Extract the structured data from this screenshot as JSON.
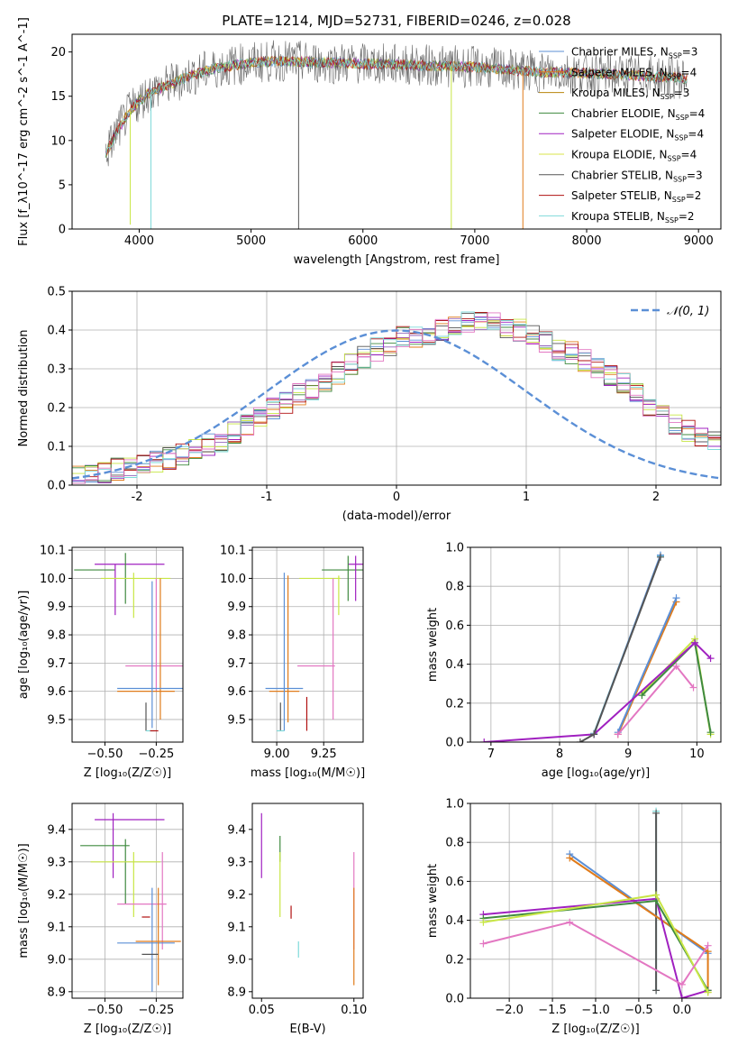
{
  "figure": {
    "title": "PLATE=1214, MJD=52731, FIBERID=0246, z=0.028"
  },
  "colors": {
    "series": [
      "#5b8fd6",
      "#9467bd",
      "#e07b1a",
      "#3f8a3f",
      "#a020c0",
      "#c8e645",
      "#555555",
      "#b01010",
      "#7fdada"
    ]
  },
  "chart_data": [
    {
      "type": "line",
      "id": "spectrum",
      "xlabel": "wavelength [Angstrom, rest frame]",
      "ylabel": "Flux [f_λ10^-17 erg cm^-2 s^-1 A^-1]",
      "xlim": [
        3400,
        9200
      ],
      "ylim": [
        0,
        22
      ],
      "xticks": [
        4000,
        5000,
        6000,
        7000,
        8000,
        9000
      ],
      "yticks": [
        0,
        5,
        10,
        15,
        20
      ],
      "grid": false,
      "legend_placement": "upper-right",
      "legend": [
        {
          "text": "Chabrier MILES, N",
          "sub": "SSP",
          "tail": "=3"
        },
        {
          "text": "Salpeter MILES, N",
          "sub": "SSP",
          "tail": "=4"
        },
        {
          "text": "Kroupa MILES, N",
          "sub": "SSP",
          "tail": "=3"
        },
        {
          "text": "Chabrier ELODIE, N",
          "sub": "SSP",
          "tail": "=4"
        },
        {
          "text": "Salpeter ELODIE, N",
          "sub": "SSP",
          "tail": "=4"
        },
        {
          "text": "Kroupa ELODIE, N",
          "sub": "SSP",
          "tail": "=4"
        },
        {
          "text": "Chabrier STELIB, N",
          "sub": "SSP",
          "tail": "=3"
        },
        {
          "text": "Salpeter STELIB, N",
          "sub": "SSP",
          "tail": "=2"
        },
        {
          "text": "Kroupa STELIB, N",
          "sub": "SSP",
          "tail": "=2"
        }
      ],
      "legend_colors": [
        "#5b8fd6",
        "#e07b1a",
        "#b8860b",
        "#3f8a3f",
        "#a020c0",
        "#d8e64a",
        "#555555",
        "#b01010",
        "#7fdada"
      ],
      "continuum": {
        "x": [
          3700,
          3800,
          3900,
          4000,
          4100,
          4300,
          4500,
          4700,
          5000,
          5300,
          5600,
          6000,
          6500,
          7000,
          7500,
          8000,
          8500,
          8900
        ],
        "y": [
          8.5,
          11,
          13,
          14.5,
          15.5,
          16.5,
          17.5,
          18.2,
          18.8,
          19.0,
          18.8,
          18.7,
          18.5,
          18.3,
          17.8,
          17.6,
          17.3,
          17.0
        ]
      },
      "dropouts": [
        {
          "x": 3920,
          "y_min": 0.5,
          "color": "#c8e645"
        },
        {
          "x": 4105,
          "y_min": 0.0,
          "color": "#7fdada"
        },
        {
          "x": 5425,
          "y_min": 0.0,
          "color": "#555555"
        },
        {
          "x": 6790,
          "y_min": 0.0,
          "color": "#c8e645"
        },
        {
          "x": 7430,
          "y_min": 0.0,
          "color": "#e07b1a"
        }
      ]
    },
    {
      "type": "line",
      "id": "residuals",
      "xlabel": "(data-model)/error",
      "ylabel": "Normed distribution",
      "xlim": [
        -2.5,
        2.5
      ],
      "ylim": [
        0,
        0.5
      ],
      "xticks": [
        -2,
        -1,
        0,
        1,
        2
      ],
      "yticks": [
        0.0,
        0.1,
        0.2,
        0.3,
        0.4,
        0.5
      ],
      "grid": true,
      "legend_placement": "upper-right",
      "legend": [
        {
          "text": "𝒩(0, 1)",
          "style": "dashed"
        }
      ],
      "gaussian": {
        "mu": 0,
        "sigma": 1,
        "color": "#5b8fd6"
      },
      "step_hist": {
        "bin_width": 0.1,
        "x_start": -2.5,
        "base": [
          0.02,
          0.025,
          0.03,
          0.04,
          0.045,
          0.055,
          0.06,
          0.07,
          0.08,
          0.09,
          0.105,
          0.115,
          0.135,
          0.155,
          0.18,
          0.2,
          0.215,
          0.235,
          0.25,
          0.27,
          0.29,
          0.31,
          0.33,
          0.35,
          0.36,
          0.38,
          0.385,
          0.39,
          0.4,
          0.41,
          0.42,
          0.425,
          0.42,
          0.41,
          0.4,
          0.39,
          0.37,
          0.35,
          0.34,
          0.32,
          0.3,
          0.28,
          0.26,
          0.235,
          0.2,
          0.18,
          0.16,
          0.14,
          0.125,
          0.11,
          0.09,
          0.08,
          0.07,
          0.06,
          0.05,
          0.045,
          0.04,
          0.035,
          0.03,
          0.025
        ]
      }
    },
    {
      "type": "scatter",
      "id": "age-vs-Z",
      "xlabel": "Z [log₁₀(Z/Z☉)]",
      "ylabel": "age  [log₁₀(age/yr)]",
      "xlim": [
        -0.66,
        -0.12
      ],
      "ylim": [
        9.42,
        10.11
      ],
      "xticks": [
        -0.5,
        -0.25
      ],
      "xticklabels": [
        "−0.50",
        "−0.25"
      ],
      "yticks": [
        9.5,
        9.6,
        9.7,
        9.8,
        9.9,
        10.0,
        10.1
      ],
      "grid": true,
      "errorbars": [
        {
          "x": -0.55,
          "y": 10.03,
          "xerr": 0.1,
          "yerr": 0.0,
          "color": "#3f8a3f"
        },
        {
          "x": -0.38,
          "y": 10.05,
          "xerr": 0.17,
          "yerr": 0.0,
          "color": "#a020c0"
        },
        {
          "x": -0.45,
          "y": 9.96,
          "xerr": 0.0,
          "yerr": 0.09,
          "color": "#a020c0"
        },
        {
          "x": -0.4,
          "y": 10.0,
          "xerr": 0.0,
          "yerr": 0.09,
          "color": "#3f8a3f"
        },
        {
          "x": -0.35,
          "y": 10.0,
          "xerr": 0.17,
          "yerr": 0.0,
          "color": "#c8e645"
        },
        {
          "x": -0.36,
          "y": 9.94,
          "xerr": 0.0,
          "yerr": 0.08,
          "color": "#c8e645"
        },
        {
          "x": -0.25,
          "y": 9.69,
          "xerr": 0.15,
          "yerr": 0.0,
          "color": "#e377c2"
        },
        {
          "x": -0.25,
          "y": 9.8,
          "xerr": 0.0,
          "yerr": 0.2,
          "color": "#e377c2"
        },
        {
          "x": -0.23,
          "y": 9.75,
          "xerr": 0.0,
          "yerr": 0.25,
          "color": "#e07b1a"
        },
        {
          "x": -0.27,
          "y": 9.61,
          "xerr": 0.17,
          "yerr": 0.0,
          "color": "#5b8fd6"
        },
        {
          "x": -0.3,
          "y": 9.6,
          "xerr": 0.14,
          "yerr": 0.0,
          "color": "#e07b1a"
        },
        {
          "x": -0.27,
          "y": 9.73,
          "xerr": 0.0,
          "yerr": 0.26,
          "color": "#5b8fd6"
        },
        {
          "x": -0.3,
          "y": 9.51,
          "xerr": 0.0,
          "yerr": 0.05,
          "color": "#555555"
        },
        {
          "x": -0.28,
          "y": 9.46,
          "xerr": 0.02,
          "yerr": 0.0,
          "color": "#7fdada"
        },
        {
          "x": -0.26,
          "y": 9.46,
          "xerr": 0.02,
          "yerr": 0.0,
          "color": "#b01010"
        }
      ]
    },
    {
      "type": "scatter",
      "id": "age-vs-mass",
      "xlabel": "mass [log₁₀(M/M☉)]",
      "ylabel": "",
      "xlim": [
        8.87,
        9.46
      ],
      "ylim": [
        9.42,
        10.11
      ],
      "xticks": [
        9.0,
        9.25
      ],
      "xticklabels": [
        "9.00",
        "9.25"
      ],
      "yticks": [
        9.5,
        9.6,
        9.7,
        9.8,
        9.9,
        10.0,
        10.1
      ],
      "grid": true,
      "errorbars": [
        {
          "x": 9.35,
          "y": 10.03,
          "xerr": 0.11,
          "yerr": 0.0,
          "color": "#3f8a3f"
        },
        {
          "x": 9.42,
          "y": 10.05,
          "xerr": 0.04,
          "yerr": 0.0,
          "color": "#a020c0"
        },
        {
          "x": 9.42,
          "y": 10.0,
          "xerr": 0.0,
          "yerr": 0.08,
          "color": "#a020c0"
        },
        {
          "x": 9.38,
          "y": 10.0,
          "xerr": 0.0,
          "yerr": 0.08,
          "color": "#3f8a3f"
        },
        {
          "x": 9.23,
          "y": 10.0,
          "xerr": 0.11,
          "yerr": 0.0,
          "color": "#c8e645"
        },
        {
          "x": 9.33,
          "y": 9.94,
          "xerr": 0.0,
          "yerr": 0.07,
          "color": "#c8e645"
        },
        {
          "x": 9.21,
          "y": 9.69,
          "xerr": 0.1,
          "yerr": 0.0,
          "color": "#e377c2"
        },
        {
          "x": 9.3,
          "y": 9.75,
          "xerr": 0.0,
          "yerr": 0.25,
          "color": "#e377c2"
        },
        {
          "x": 9.06,
          "y": 9.75,
          "xerr": 0.0,
          "yerr": 0.26,
          "color": "#e07b1a"
        },
        {
          "x": 9.04,
          "y": 9.61,
          "xerr": 0.1,
          "yerr": 0.0,
          "color": "#5b8fd6"
        },
        {
          "x": 9.04,
          "y": 9.6,
          "xerr": 0.08,
          "yerr": 0.0,
          "color": "#e07b1a"
        },
        {
          "x": 9.04,
          "y": 9.74,
          "xerr": 0.0,
          "yerr": 0.28,
          "color": "#5b8fd6"
        },
        {
          "x": 9.16,
          "y": 9.52,
          "xerr": 0.0,
          "yerr": 0.06,
          "color": "#b01010"
        },
        {
          "x": 9.02,
          "y": 9.51,
          "xerr": 0.0,
          "yerr": 0.05,
          "color": "#555555"
        },
        {
          "x": 9.02,
          "y": 9.46,
          "xerr": 0.02,
          "yerr": 0.0,
          "color": "#7fdada"
        }
      ]
    },
    {
      "type": "line",
      "id": "mass-weight-vs-age",
      "xlabel": "age  [log₁₀(age/yr)]",
      "ylabel": "mass weight",
      "xlim": [
        6.7,
        10.35
      ],
      "ylim": [
        0,
        1.0
      ],
      "xticks": [
        7,
        8,
        9,
        10
      ],
      "yticks": [
        0.0,
        0.2,
        0.4,
        0.6,
        0.8,
        1.0
      ],
      "grid": true,
      "series": [
        {
          "color": "#7fdada",
          "x": [
            8.5,
            9.47
          ],
          "y": [
            0.045,
            0.955
          ]
        },
        {
          "color": "#5b8fd6",
          "x": [
            8.5,
            9.47
          ],
          "y": [
            0.04,
            0.96
          ]
        },
        {
          "color": "#e07b1a",
          "x": [
            8.85,
            9.7
          ],
          "y": [
            0.04,
            0.72
          ]
        },
        {
          "color": "#5b8fd6",
          "x": [
            8.85,
            9.7
          ],
          "y": [
            0.05,
            0.74
          ]
        },
        {
          "color": "#c8e645",
          "x": [
            9.2,
            9.97,
            10.2
          ],
          "y": [
            0.25,
            0.53,
            0.04
          ]
        },
        {
          "color": "#3f8a3f",
          "x": [
            9.2,
            9.97,
            10.2
          ],
          "y": [
            0.24,
            0.51,
            0.05
          ]
        },
        {
          "color": "#a020c0",
          "x": [
            6.9,
            8.5,
            9.97,
            10.2
          ],
          "y": [
            0.0,
            0.04,
            0.51,
            0.43
          ]
        },
        {
          "color": "#555555",
          "x": [
            8.3,
            8.5,
            9.47
          ],
          "y": [
            0.0,
            0.04,
            0.95
          ]
        },
        {
          "color": "#e377c2",
          "x": [
            8.85,
            9.7,
            9.95
          ],
          "y": [
            0.04,
            0.39,
            0.28
          ]
        }
      ]
    },
    {
      "type": "scatter",
      "id": "mass-vs-Z",
      "xlabel": "Z [log₁₀(Z/Z☉)]",
      "ylabel": "mass [log₁₀(M/M☉)]",
      "xlim": [
        -0.66,
        -0.12
      ],
      "ylim": [
        8.88,
        9.48
      ],
      "xticks": [
        -0.5,
        -0.25
      ],
      "xticklabels": [
        "−0.50",
        "−0.25"
      ],
      "yticks": [
        8.9,
        9.0,
        9.1,
        9.2,
        9.3,
        9.4
      ],
      "grid": true,
      "errorbars": [
        {
          "x": -0.38,
          "y": 9.43,
          "xerr": 0.17,
          "yerr": 0.0,
          "color": "#a020c0"
        },
        {
          "x": -0.46,
          "y": 9.35,
          "xerr": 0.0,
          "yerr": 0.1,
          "color": "#a020c0"
        },
        {
          "x": -0.5,
          "y": 9.35,
          "xerr": 0.12,
          "yerr": 0.0,
          "color": "#3f8a3f"
        },
        {
          "x": -0.4,
          "y": 9.27,
          "xerr": 0.0,
          "yerr": 0.1,
          "color": "#3f8a3f"
        },
        {
          "x": -0.4,
          "y": 9.3,
          "xerr": 0.17,
          "yerr": 0.0,
          "color": "#c8e645"
        },
        {
          "x": -0.36,
          "y": 9.23,
          "xerr": 0.0,
          "yerr": 0.1,
          "color": "#c8e645"
        },
        {
          "x": -0.32,
          "y": 9.17,
          "xerr": 0.12,
          "yerr": 0.0,
          "color": "#e377c2"
        },
        {
          "x": -0.22,
          "y": 9.18,
          "xerr": 0.0,
          "yerr": 0.15,
          "color": "#e377c2"
        },
        {
          "x": -0.3,
          "y": 9.13,
          "xerr": 0.02,
          "yerr": 0.0,
          "color": "#b01010"
        },
        {
          "x": -0.3,
          "y": 9.05,
          "xerr": 0.14,
          "yerr": 0.0,
          "color": "#5b8fd6"
        },
        {
          "x": -0.27,
          "y": 9.06,
          "xerr": 0.0,
          "yerr": 0.16,
          "color": "#5b8fd6"
        },
        {
          "x": -0.24,
          "y": 9.055,
          "xerr": 0.11,
          "yerr": 0.0,
          "color": "#e07b1a"
        },
        {
          "x": -0.24,
          "y": 9.07,
          "xerr": 0.0,
          "yerr": 0.15,
          "color": "#e07b1a"
        },
        {
          "x": -0.28,
          "y": 9.015,
          "xerr": 0.04,
          "yerr": 0.0,
          "color": "#555555"
        }
      ]
    },
    {
      "type": "scatter",
      "id": "mass-vs-ebv",
      "xlabel": "E(B-V)",
      "ylabel": "",
      "xlim": [
        0.045,
        0.105
      ],
      "ylim": [
        8.88,
        9.48
      ],
      "xticks": [
        0.05,
        0.1
      ],
      "xticklabels": [
        "0.05",
        "0.10"
      ],
      "yticks": [
        8.9,
        9.0,
        9.1,
        9.2,
        9.3,
        9.4
      ],
      "grid": false,
      "errorbars": [
        {
          "x": 0.05,
          "y": 9.35,
          "xerr": 0.0,
          "yerr": 0.1,
          "color": "#a020c0"
        },
        {
          "x": 0.06,
          "y": 9.34,
          "xerr": 0.0,
          "yerr": 0.04,
          "color": "#3f8a3f"
        },
        {
          "x": 0.06,
          "y": 9.23,
          "xerr": 0.0,
          "yerr": 0.1,
          "color": "#c8e645"
        },
        {
          "x": 0.066,
          "y": 9.145,
          "xerr": 0.0,
          "yerr": 0.02,
          "color": "#b01010"
        },
        {
          "x": 0.07,
          "y": 9.03,
          "xerr": 0.0,
          "yerr": 0.025,
          "color": "#7fdada"
        },
        {
          "x": 0.1,
          "y": 9.18,
          "xerr": 0.0,
          "yerr": 0.15,
          "color": "#e377c2"
        },
        {
          "x": 0.1,
          "y": 9.07,
          "xerr": 0.0,
          "yerr": 0.15,
          "color": "#e07b1a"
        }
      ]
    },
    {
      "type": "line",
      "id": "mass-weight-vs-Z",
      "xlabel": "Z [log₁₀(Z/Z☉)]",
      "ylabel": "mass weight",
      "xlim": [
        -2.45,
        0.45
      ],
      "ylim": [
        0,
        1.0
      ],
      "xticks": [
        -2.0,
        -1.5,
        -1.0,
        -0.5,
        0.0
      ],
      "xticklabels": [
        "−2.0",
        "−1.5",
        "−1.0",
        "−0.5",
        "0.0"
      ],
      "yticks": [
        0.0,
        0.2,
        0.4,
        0.6,
        0.8,
        1.0
      ],
      "grid": true,
      "series": [
        {
          "color": "#7fdada",
          "x": [
            -0.3,
            -0.3
          ],
          "y": [
            0.04,
            0.96
          ]
        },
        {
          "color": "#555555",
          "x": [
            -0.3,
            -0.3
          ],
          "y": [
            0.04,
            0.95
          ]
        },
        {
          "color": "#5b8fd6",
          "x": [
            -1.3,
            0.3
          ],
          "y": [
            0.74,
            0.23
          ]
        },
        {
          "color": "#e07b1a",
          "x": [
            -1.3,
            0.3,
            0.3
          ],
          "y": [
            0.72,
            0.24,
            0.03
          ]
        },
        {
          "color": "#a020c0",
          "x": [
            -2.3,
            -0.3,
            0.0,
            0.3
          ],
          "y": [
            0.43,
            0.51,
            0.0,
            0.04
          ]
        },
        {
          "color": "#3f8a3f",
          "x": [
            -2.3,
            -0.3,
            0.3
          ],
          "y": [
            0.41,
            0.5,
            0.04
          ]
        },
        {
          "color": "#c8e645",
          "x": [
            -2.3,
            -0.3,
            0.3
          ],
          "y": [
            0.39,
            0.53,
            0.03
          ]
        },
        {
          "color": "#e377c2",
          "x": [
            -2.3,
            -1.3,
            0.0,
            0.3
          ],
          "y": [
            0.28,
            0.39,
            0.07,
            0.27
          ]
        }
      ]
    }
  ]
}
